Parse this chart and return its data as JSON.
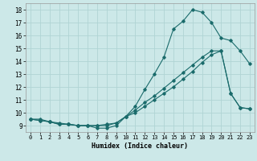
{
  "title": "",
  "xlabel": "Humidex (Indice chaleur)",
  "bg_color": "#cce8e8",
  "grid_color": "#b0d4d4",
  "line_color": "#1a6b6b",
  "xlim": [
    -0.5,
    23.5
  ],
  "ylim": [
    8.5,
    18.5
  ],
  "xticks": [
    0,
    1,
    2,
    3,
    4,
    5,
    6,
    7,
    8,
    9,
    10,
    11,
    12,
    13,
    14,
    15,
    16,
    17,
    18,
    19,
    20,
    21,
    22,
    23
  ],
  "yticks": [
    9,
    10,
    11,
    12,
    13,
    14,
    15,
    16,
    17,
    18
  ],
  "line1_x": [
    0,
    1,
    2,
    3,
    4,
    5,
    6,
    7,
    8,
    9,
    10,
    11,
    12,
    13,
    14,
    15,
    16,
    17,
    18,
    19,
    20,
    21,
    22,
    23
  ],
  "line1_y": [
    9.5,
    9.5,
    9.3,
    9.1,
    9.1,
    9.0,
    9.0,
    8.8,
    8.8,
    9.0,
    9.7,
    10.5,
    11.8,
    13.0,
    14.3,
    16.5,
    17.1,
    18.0,
    17.8,
    17.0,
    15.8,
    15.6,
    14.8,
    13.8
  ],
  "line2_x": [
    0,
    1,
    2,
    3,
    4,
    5,
    6,
    7,
    8,
    9,
    10,
    11,
    12,
    13,
    14,
    15,
    16,
    17,
    18,
    19,
    20,
    21,
    22,
    23
  ],
  "line2_y": [
    9.5,
    9.4,
    9.3,
    9.1,
    9.1,
    9.0,
    9.0,
    9.0,
    9.0,
    9.2,
    9.7,
    10.2,
    10.8,
    11.3,
    11.9,
    12.5,
    13.1,
    13.7,
    14.3,
    14.8,
    14.8,
    11.5,
    10.4,
    10.3
  ],
  "line3_x": [
    0,
    1,
    2,
    3,
    4,
    5,
    6,
    7,
    8,
    9,
    10,
    11,
    12,
    13,
    14,
    15,
    16,
    17,
    18,
    19,
    20,
    21,
    22,
    23
  ],
  "line3_y": [
    9.5,
    9.4,
    9.3,
    9.2,
    9.1,
    9.0,
    9.0,
    9.0,
    9.1,
    9.2,
    9.7,
    10.0,
    10.5,
    11.0,
    11.5,
    12.0,
    12.6,
    13.2,
    13.9,
    14.5,
    14.8,
    11.5,
    10.4,
    10.3
  ]
}
